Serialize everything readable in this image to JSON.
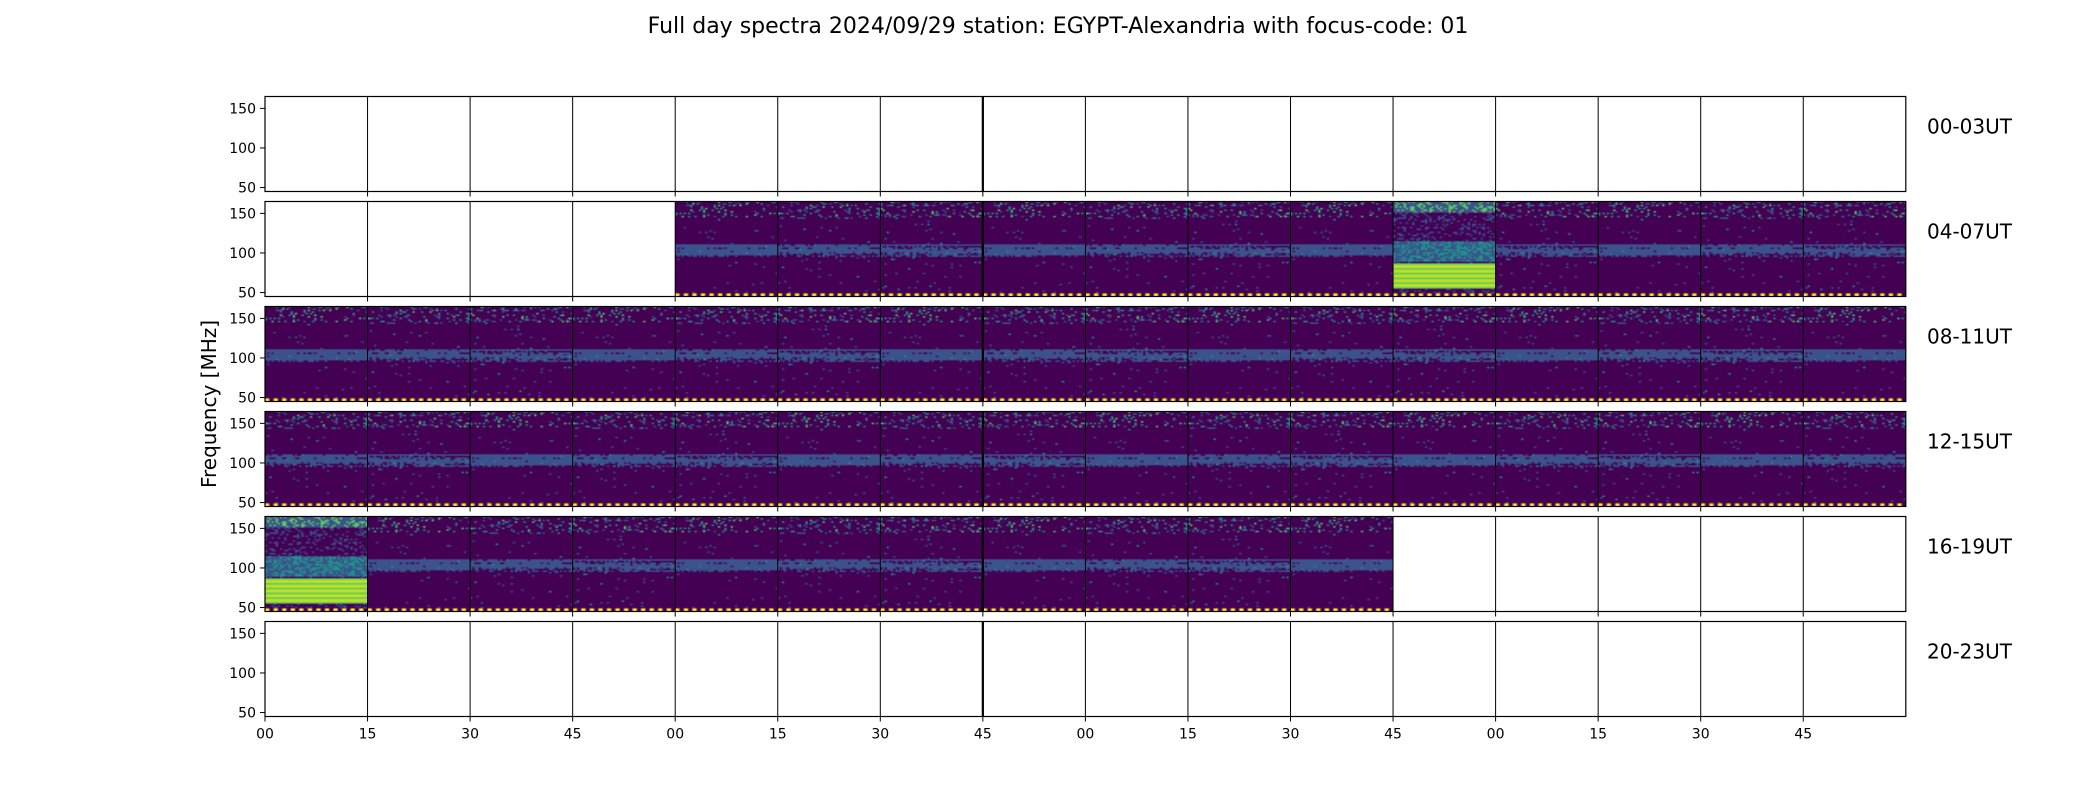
{
  "chart_data": {
    "type": "heatmap",
    "title": "Full day spectra 2024/09/29 station: EGYPT-Alexandria with focus-code: 01",
    "ylabel": "Frequency [MHz]",
    "xlabel": "",
    "ylim": [
      45,
      165
    ],
    "y_ticks": [
      "150",
      "100",
      "50"
    ],
    "y_tick_values": [
      150,
      100,
      50
    ],
    "x_tick_labels": [
      "00",
      "15",
      "30",
      "45",
      "00",
      "15",
      "30",
      "45",
      "00",
      "15",
      "30",
      "45",
      "00",
      "15",
      "30",
      "45"
    ],
    "colormap": "viridis",
    "colors": {
      "low": "#440154",
      "mid_low": "#3b528b",
      "mid": "#21918c",
      "mid_high": "#5ec962",
      "high": "#fde725",
      "band": "#bddf26",
      "marker": "#fde725"
    },
    "panels_per_row": 16,
    "minutes_per_panel": 15,
    "rows": [
      {
        "label": "00-03UT",
        "filled": [
          0,
          0,
          0,
          0,
          0,
          0,
          0,
          0,
          0,
          0,
          0,
          0,
          0,
          0,
          0,
          0
        ],
        "saturated": []
      },
      {
        "label": "04-07UT",
        "filled": [
          0,
          0,
          0,
          0,
          1,
          1,
          1,
          1,
          1,
          1,
          1,
          1,
          1,
          1,
          1,
          1
        ],
        "saturated": [
          11
        ]
      },
      {
        "label": "08-11UT",
        "filled": [
          1,
          1,
          1,
          1,
          1,
          1,
          1,
          1,
          1,
          1,
          1,
          1,
          1,
          1,
          1,
          1
        ],
        "saturated": []
      },
      {
        "label": "12-15UT",
        "filled": [
          1,
          1,
          1,
          1,
          1,
          1,
          1,
          1,
          1,
          1,
          1,
          1,
          1,
          1,
          1,
          1
        ],
        "saturated": []
      },
      {
        "label": "16-19UT",
        "filled": [
          1,
          1,
          1,
          1,
          1,
          1,
          1,
          1,
          1,
          1,
          1,
          0,
          0,
          0,
          0,
          0
        ],
        "saturated": [
          0
        ]
      },
      {
        "label": "20-23UT",
        "filled": [
          0,
          0,
          0,
          0,
          0,
          0,
          0,
          0,
          0,
          0,
          0,
          0,
          0,
          0,
          0,
          0
        ],
        "saturated": []
      }
    ]
  }
}
